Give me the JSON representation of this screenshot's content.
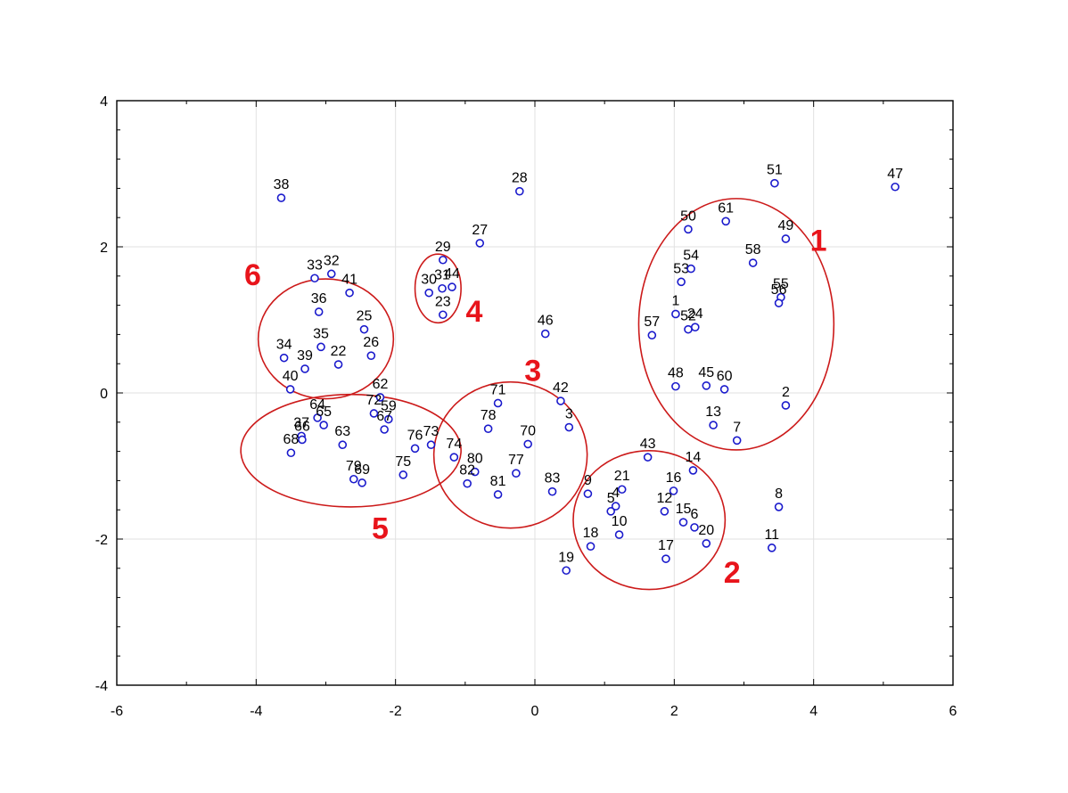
{
  "chart_data": {
    "type": "scatter",
    "title": "",
    "xlabel": "",
    "ylabel": "",
    "xlim": [
      -6,
      6
    ],
    "ylim": [
      -4,
      4
    ],
    "x_ticks": [
      "-6",
      "-4",
      "-2",
      "0",
      "2",
      "4",
      "6"
    ],
    "y_ticks": [
      "-4",
      "-2",
      "0",
      "2",
      "4"
    ],
    "grid": true,
    "point_color": "#1a1acc",
    "cluster_color": "#cc1a1a",
    "cluster_label_color": "#e8141b",
    "points": [
      {
        "label": "1",
        "x": 2.02,
        "y": 1.08
      },
      {
        "label": "2",
        "x": 3.6,
        "y": -0.17
      },
      {
        "label": "3",
        "x": 0.49,
        "y": -0.47
      },
      {
        "label": "4",
        "x": 1.16,
        "y": -1.55
      },
      {
        "label": "5",
        "x": 1.09,
        "y": -1.62
      },
      {
        "label": "6",
        "x": 2.29,
        "y": -1.84
      },
      {
        "label": "7",
        "x": 2.9,
        "y": -0.65
      },
      {
        "label": "8",
        "x": 3.5,
        "y": -1.56
      },
      {
        "label": "9",
        "x": 0.76,
        "y": -1.38
      },
      {
        "label": "10",
        "x": 1.21,
        "y": -1.94
      },
      {
        "label": "11",
        "x": 3.4,
        "y": -2.12
      },
      {
        "label": "12",
        "x": 1.86,
        "y": -1.62
      },
      {
        "label": "13",
        "x": 2.56,
        "y": -0.44
      },
      {
        "label": "14",
        "x": 2.27,
        "y": -1.06
      },
      {
        "label": "15",
        "x": 2.13,
        "y": -1.77
      },
      {
        "label": "16",
        "x": 1.99,
        "y": -1.34
      },
      {
        "label": "17",
        "x": 1.88,
        "y": -2.27
      },
      {
        "label": "18",
        "x": 0.8,
        "y": -2.1
      },
      {
        "label": "19",
        "x": 0.45,
        "y": -2.43
      },
      {
        "label": "20",
        "x": 2.46,
        "y": -2.06
      },
      {
        "label": "21",
        "x": 1.25,
        "y": -1.32
      },
      {
        "label": "22",
        "x": -2.82,
        "y": 0.39
      },
      {
        "label": "23",
        "x": -1.32,
        "y": 1.07
      },
      {
        "label": "24",
        "x": 2.3,
        "y": 0.9
      },
      {
        "label": "25",
        "x": -2.45,
        "y": 0.87
      },
      {
        "label": "26",
        "x": -2.35,
        "y": 0.51
      },
      {
        "label": "27",
        "x": -0.79,
        "y": 2.05
      },
      {
        "label": "28",
        "x": -0.22,
        "y": 2.76
      },
      {
        "label": "29",
        "x": -1.32,
        "y": 1.82
      },
      {
        "label": "30",
        "x": -1.52,
        "y": 1.37
      },
      {
        "label": "31",
        "x": -1.33,
        "y": 1.43
      },
      {
        "label": "32",
        "x": -2.92,
        "y": 1.63
      },
      {
        "label": "33",
        "x": -3.16,
        "y": 1.57
      },
      {
        "label": "34",
        "x": -3.6,
        "y": 0.48
      },
      {
        "label": "35",
        "x": -3.07,
        "y": 0.63
      },
      {
        "label": "36",
        "x": -3.1,
        "y": 1.11
      },
      {
        "label": "37",
        "x": -3.35,
        "y": -0.59
      },
      {
        "label": "38",
        "x": -3.64,
        "y": 2.67
      },
      {
        "label": "39",
        "x": -3.3,
        "y": 0.33
      },
      {
        "label": "40",
        "x": -3.51,
        "y": 0.05
      },
      {
        "label": "41",
        "x": -2.66,
        "y": 1.37
      },
      {
        "label": "42",
        "x": 0.37,
        "y": -0.11
      },
      {
        "label": "43",
        "x": 1.62,
        "y": -0.88
      },
      {
        "label": "44",
        "x": -1.19,
        "y": 1.45
      },
      {
        "label": "45",
        "x": 2.46,
        "y": 0.1
      },
      {
        "label": "46",
        "x": 0.15,
        "y": 0.81
      },
      {
        "label": "47",
        "x": 5.17,
        "y": 2.82
      },
      {
        "label": "48",
        "x": 2.02,
        "y": 0.09
      },
      {
        "label": "49",
        "x": 3.6,
        "y": 2.11
      },
      {
        "label": "50",
        "x": 2.2,
        "y": 2.24
      },
      {
        "label": "51",
        "x": 3.44,
        "y": 2.87
      },
      {
        "label": "52",
        "x": 2.2,
        "y": 0.87
      },
      {
        "label": "53",
        "x": 2.1,
        "y": 1.52
      },
      {
        "label": "54",
        "x": 2.24,
        "y": 1.7
      },
      {
        "label": "55",
        "x": 3.53,
        "y": 1.31
      },
      {
        "label": "56",
        "x": 3.5,
        "y": 1.23
      },
      {
        "label": "57",
        "x": 1.68,
        "y": 0.79
      },
      {
        "label": "58",
        "x": 3.13,
        "y": 1.78
      },
      {
        "label": "59",
        "x": -2.1,
        "y": -0.36
      },
      {
        "label": "60",
        "x": 2.72,
        "y": 0.05
      },
      {
        "label": "61",
        "x": 2.74,
        "y": 2.35
      },
      {
        "label": "62",
        "x": -2.22,
        "y": -0.06
      },
      {
        "label": "63",
        "x": -2.76,
        "y": -0.71
      },
      {
        "label": "64",
        "x": -3.12,
        "y": -0.34
      },
      {
        "label": "65",
        "x": -3.03,
        "y": -0.44
      },
      {
        "label": "66",
        "x": -3.34,
        "y": -0.64
      },
      {
        "label": "67",
        "x": -2.16,
        "y": -0.5
      },
      {
        "label": "68",
        "x": -3.5,
        "y": -0.82
      },
      {
        "label": "69",
        "x": -2.48,
        "y": -1.23
      },
      {
        "label": "70",
        "x": -0.1,
        "y": -0.7
      },
      {
        "label": "71",
        "x": -0.53,
        "y": -0.14
      },
      {
        "label": "72",
        "x": -2.31,
        "y": -0.28
      },
      {
        "label": "73",
        "x": -1.49,
        "y": -0.71
      },
      {
        "label": "74",
        "x": -1.16,
        "y": -0.88
      },
      {
        "label": "75",
        "x": -1.89,
        "y": -1.12
      },
      {
        "label": "76",
        "x": -1.72,
        "y": -0.76
      },
      {
        "label": "77",
        "x": -0.27,
        "y": -1.1
      },
      {
        "label": "78",
        "x": -0.67,
        "y": -0.49
      },
      {
        "label": "79",
        "x": -2.6,
        "y": -1.18
      },
      {
        "label": "80",
        "x": -0.86,
        "y": -1.08
      },
      {
        "label": "81",
        "x": -0.53,
        "y": -1.39
      },
      {
        "label": "82",
        "x": -0.97,
        "y": -1.24
      },
      {
        "label": "83",
        "x": 0.25,
        "y": -1.35
      }
    ],
    "clusters": [
      {
        "label": "1",
        "cx": 2.89,
        "cy": 0.94,
        "rx": 1.4,
        "ry": 1.72,
        "label_x": 4.07,
        "label_y": 2.09
      },
      {
        "label": "2",
        "cx": 1.64,
        "cy": -1.74,
        "rx": 1.09,
        "ry": 0.95,
        "label_x": 2.83,
        "label_y": -2.45
      },
      {
        "label": "3",
        "cx": -0.35,
        "cy": -0.85,
        "rx": 1.1,
        "ry": 1.0,
        "label_x": -0.03,
        "label_y": 0.31
      },
      {
        "label": "4",
        "cx": -1.39,
        "cy": 1.43,
        "rx": 0.33,
        "ry": 0.47,
        "label_x": -0.87,
        "label_y": 1.12
      },
      {
        "label": "5",
        "cx": -2.64,
        "cy": -0.79,
        "rx": 1.58,
        "ry": 0.77,
        "label_x": -2.22,
        "label_y": -1.85
      },
      {
        "label": "6",
        "cx": -3.0,
        "cy": 0.74,
        "rx": 0.97,
        "ry": 0.82,
        "label_x": -4.05,
        "label_y": 1.62
      }
    ]
  }
}
